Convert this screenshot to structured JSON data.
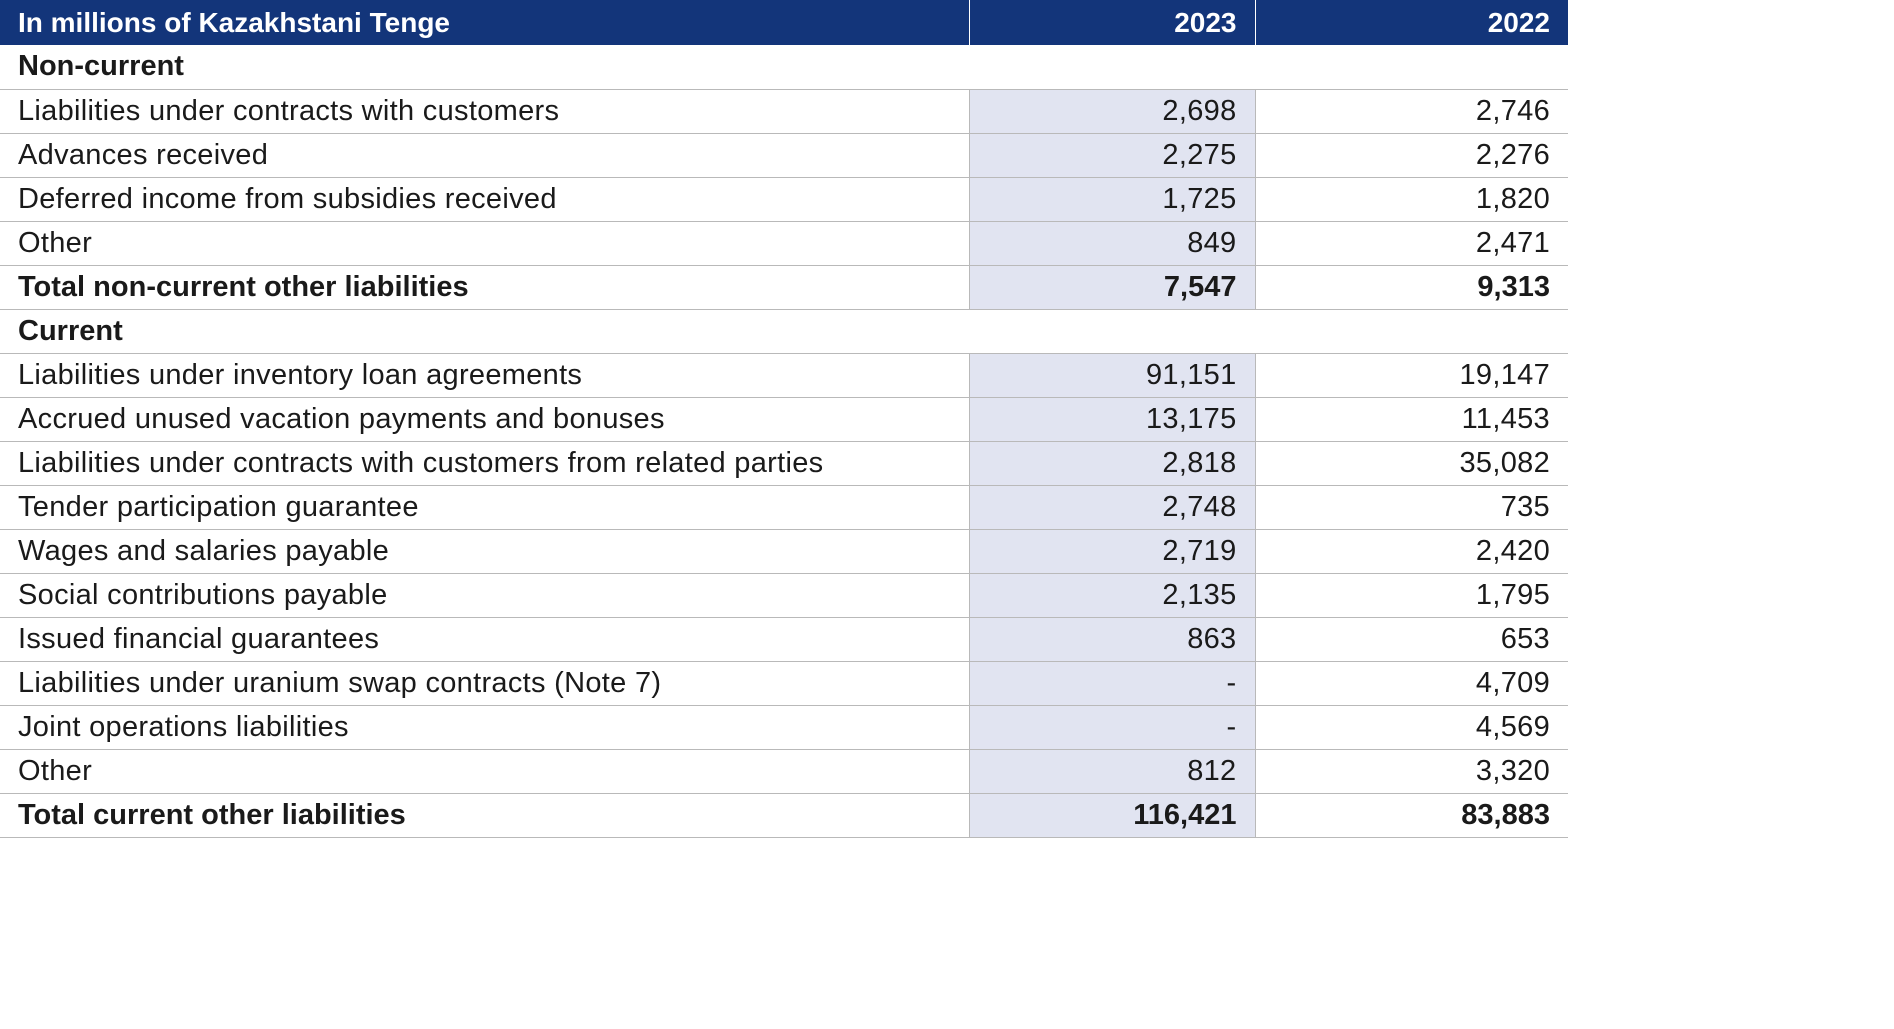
{
  "header": {
    "label": "In millions of Kazakhstani Tenge",
    "col1": "2023",
    "col2": "2022"
  },
  "rows": [
    {
      "type": "section",
      "label": "Non-current",
      "v2023": "",
      "v2022": ""
    },
    {
      "type": "item",
      "label": "Liabilities under contracts with customers",
      "v2023": "2,698",
      "v2022": "2,746"
    },
    {
      "type": "item",
      "label": "Advances received",
      "v2023": "2,275",
      "v2022": "2,276"
    },
    {
      "type": "item",
      "label": "Deferred income from subsidies received",
      "v2023": "1,725",
      "v2022": "1,820"
    },
    {
      "type": "item",
      "label": "Other",
      "v2023": "849",
      "v2022": "2,471"
    },
    {
      "type": "total",
      "label": "Total non-current other liabilities",
      "v2023": "7,547",
      "v2022": "9,313"
    },
    {
      "type": "section",
      "label": "Current",
      "v2023": "",
      "v2022": ""
    },
    {
      "type": "item",
      "label": "Liabilities under inventory loan agreements",
      "v2023": "91,151",
      "v2022": "19,147"
    },
    {
      "type": "item",
      "label": "Accrued unused vacation payments and bonuses",
      "v2023": "13,175",
      "v2022": "11,453"
    },
    {
      "type": "item",
      "label": "Liabilities under contracts with customers from related parties",
      "v2023": "2,818",
      "v2022": "35,082"
    },
    {
      "type": "item",
      "label": "Tender participation guarantee",
      "v2023": "2,748",
      "v2022": "735"
    },
    {
      "type": "item",
      "label": "Wages and salaries payable",
      "v2023": "2,719",
      "v2022": "2,420"
    },
    {
      "type": "item",
      "label": "Social contributions payable",
      "v2023": "2,135",
      "v2022": "1,795"
    },
    {
      "type": "item",
      "label": "Issued financial guarantees",
      "v2023": "863",
      "v2022": "653"
    },
    {
      "type": "item",
      "label": "Liabilities under uranium swap contracts (Note 7)",
      "v2023": "-",
      "v2022": "4,709"
    },
    {
      "type": "item",
      "label": "Joint operations liabilities",
      "v2023": "-",
      "v2022": "4,569"
    },
    {
      "type": "item",
      "label": "Other",
      "v2023": "812",
      "v2022": "3,320"
    },
    {
      "type": "total",
      "label": "Total current other liabilities",
      "v2023": "116,421",
      "v2022": "83,883"
    }
  ]
}
